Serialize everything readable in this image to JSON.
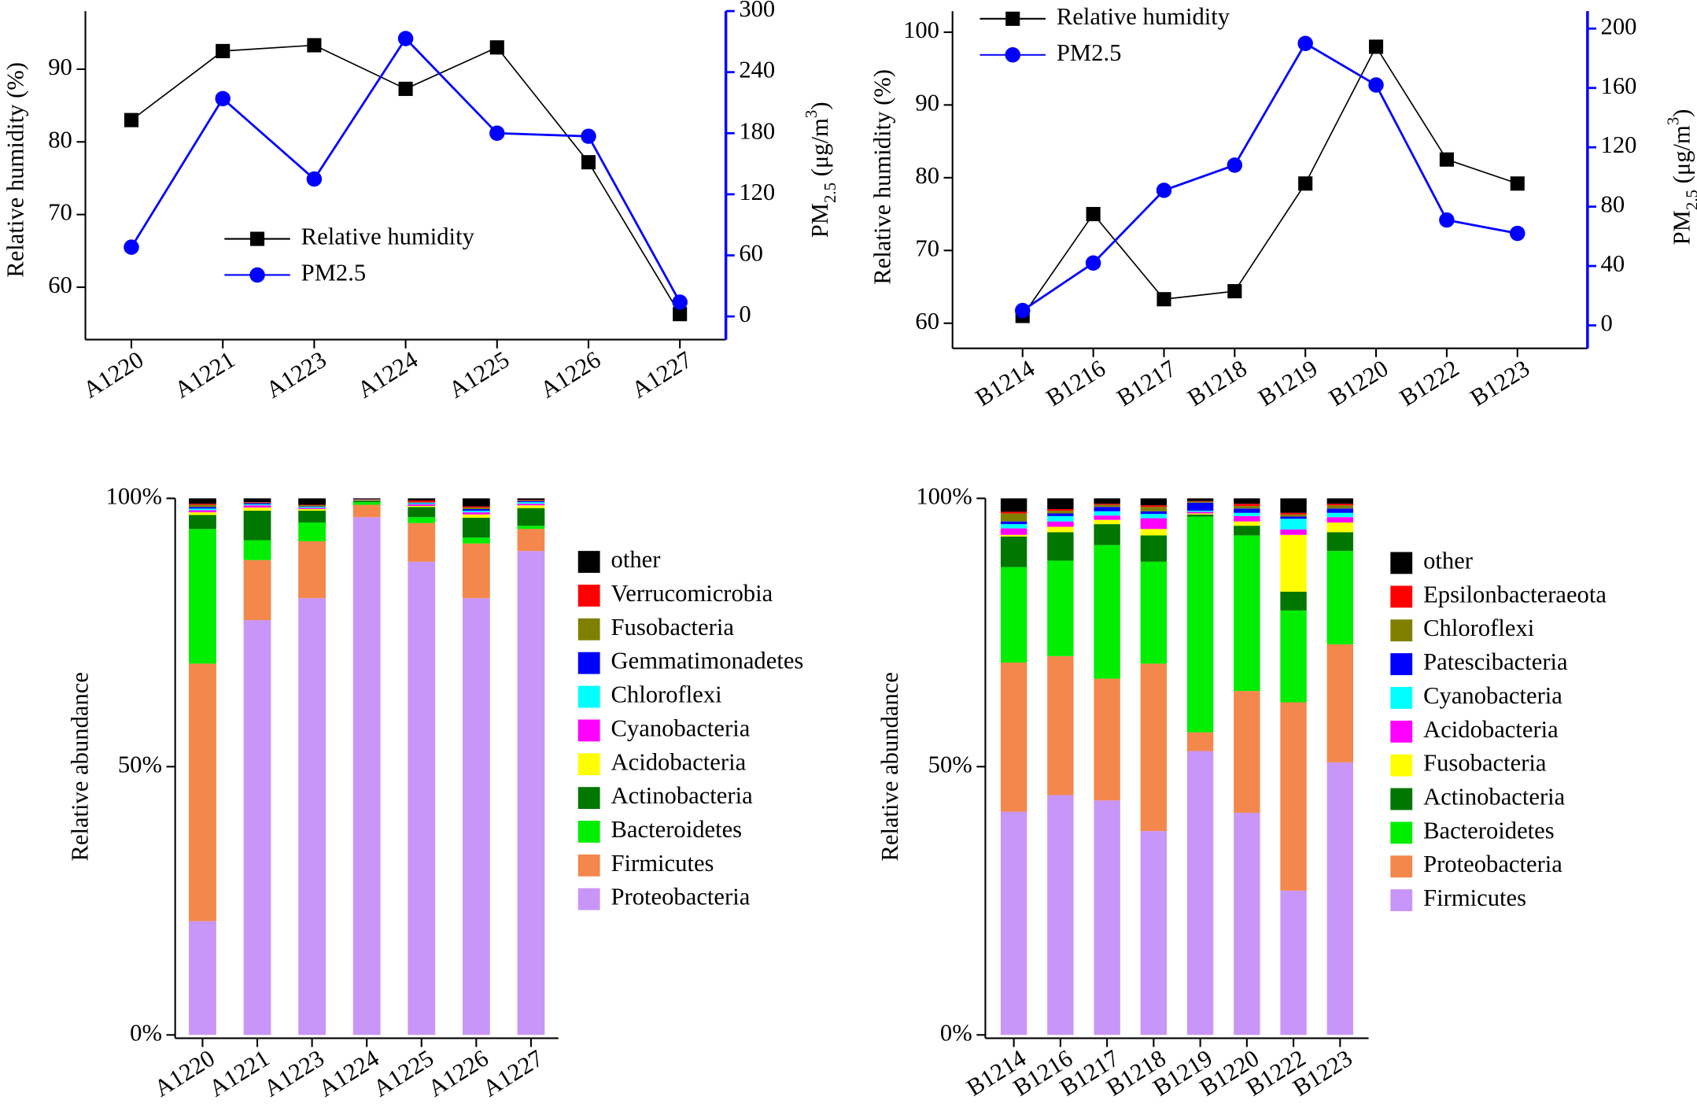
{
  "chart_data": [
    {
      "type": "line",
      "categories": [
        "A1220",
        "A1221",
        "A1223",
        "A1224",
        "A1225",
        "A1226",
        "A1227"
      ],
      "ylabel": "Relative humidity (%)",
      "y2label": [
        "PM",
        "2.5",
        " (μg/m",
        "3",
        ")"
      ],
      "ylim": [
        54.3,
        98
      ],
      "yticks": [
        60,
        70,
        80,
        90
      ],
      "y2lim": [
        -12,
        300
      ],
      "y2ticks": [
        0,
        60,
        120,
        180,
        240,
        300
      ],
      "series": [
        {
          "name": "Relative humidity",
          "color": "#000000",
          "marker": "square",
          "values": [
            83,
            92.5,
            93.3,
            87.3,
            93,
            77.2,
            56.3
          ]
        },
        {
          "name": "PM2.5",
          "color": "#0000ff",
          "marker": "circle",
          "axis": "y2",
          "values": [
            68,
            214,
            135,
            273,
            180,
            177,
            14
          ]
        }
      ]
    },
    {
      "type": "line",
      "categories": [
        "B1214",
        "B1216",
        "B1217",
        "B1218",
        "B1219",
        "B1220",
        "B1222",
        "B1223"
      ],
      "ylabel": "Relative humidity (%)",
      "y2label": [
        "PM",
        "2.5",
        " (μg/m",
        "3",
        ")"
      ],
      "ylim": [
        57.3,
        102.9
      ],
      "yticks": [
        60,
        70,
        80,
        90,
        100
      ],
      "y2lim": [
        -11.8,
        211.8
      ],
      "y2ticks": [
        0,
        40,
        80,
        120,
        160,
        200
      ],
      "series": [
        {
          "name": "Relative humidity",
          "color": "#000000",
          "marker": "square",
          "values": [
            61,
            75,
            63.3,
            64.4,
            79.2,
            98,
            82.5,
            79.2
          ]
        },
        {
          "name": "PM2.5",
          "color": "#0000ff",
          "marker": "circle",
          "axis": "y2",
          "values": [
            10,
            42,
            91,
            108,
            190,
            162,
            71,
            62
          ]
        }
      ]
    },
    {
      "type": "stacked_bar",
      "categories": [
        "A1220",
        "A1221",
        "A1223",
        "A1224",
        "A1225",
        "A1226",
        "A1227"
      ],
      "ylabel": "Relative abundance",
      "ylim": [
        0,
        100
      ],
      "yticks": [
        {
          "value": 0,
          "label": "0%"
        },
        {
          "value": 50,
          "label": "50%"
        },
        {
          "value": 100,
          "label": "100%"
        }
      ],
      "series": [
        {
          "name": "Proteobacteria",
          "color": "#c896f8",
          "values": [
            21.2,
            77.3,
            81.4,
            96.5,
            88.2,
            81.4,
            90.2
          ]
        },
        {
          "name": "Firmicutes",
          "color": "#f4874b",
          "values": [
            48,
            11.2,
            10.6,
            2.3,
            7.2,
            10.2,
            4.1
          ]
        },
        {
          "name": "Bacteroidetes",
          "color": "#00ee00",
          "values": [
            25.1,
            3.7,
            3.5,
            0.5,
            1.1,
            1.1,
            0.6
          ]
        },
        {
          "name": "Actinobacteria",
          "color": "#007700",
          "values": [
            2.6,
            5.5,
            2.2,
            0.3,
            1.9,
            3.7,
            3.3
          ]
        },
        {
          "name": "Acidobacteria",
          "color": "#ffff00",
          "values": [
            0.5,
            0.6,
            0.3,
            0.1,
            0.2,
            0.6,
            0.5
          ]
        },
        {
          "name": "Cyanobacteria",
          "color": "#ff00ff",
          "values": [
            0.4,
            0.4,
            0.2,
            0.1,
            0.3,
            0.4,
            0.3
          ]
        },
        {
          "name": "Chloroflexi",
          "color": "#00ffff",
          "values": [
            0.3,
            0.2,
            0.2,
            0,
            0.2,
            0.3,
            0.3
          ]
        },
        {
          "name": "Gemmatimonadetes",
          "color": "#0000ff",
          "values": [
            0.3,
            0.2,
            0.1,
            0,
            0.1,
            0.3,
            0.2
          ]
        },
        {
          "name": "Fusobacteria",
          "color": "#808000",
          "values": [
            0.4,
            0.1,
            0.2,
            0,
            0.1,
            0.3,
            0.1
          ]
        },
        {
          "name": "Verrucomicrobia",
          "color": "#ff0000",
          "values": [
            0.2,
            0.1,
            0.1,
            0,
            0.3,
            0.2,
            0.1
          ]
        },
        {
          "name": "other",
          "color": "#000000",
          "values": [
            1.0,
            0.7,
            1.2,
            0.2,
            0.4,
            1.5,
            0.3
          ]
        }
      ]
    },
    {
      "type": "stacked_bar",
      "categories": [
        "B1214",
        "B1216",
        "B1217",
        "B1218",
        "B1219",
        "B1220",
        "B1222",
        "B1223"
      ],
      "ylabel": "Relative abundance",
      "ylim": [
        0,
        100
      ],
      "yticks": [
        {
          "value": 0,
          "label": "0%"
        },
        {
          "value": 50,
          "label": "50%"
        },
        {
          "value": 100,
          "label": "100%"
        }
      ],
      "series": [
        {
          "name": "Firmicutes",
          "color": "#c896f8",
          "values": [
            41.6,
            44.7,
            43.7,
            38,
            52.9,
            41.4,
            26.9,
            50.8
          ]
        },
        {
          "name": "Proteobacteria",
          "color": "#f4874b",
          "values": [
            27.8,
            25.9,
            22.7,
            31.2,
            3.5,
            22.7,
            35.1,
            22
          ]
        },
        {
          "name": "Bacteroidetes",
          "color": "#00ee00",
          "values": [
            17.8,
            17.8,
            24.9,
            19,
            40.2,
            29,
            17.1,
            17.4
          ]
        },
        {
          "name": "Actinobacteria",
          "color": "#007700",
          "values": [
            5.7,
            5.3,
            3.9,
            4.9,
            0.4,
            1.8,
            3.5,
            3.5
          ]
        },
        {
          "name": "Fusobacteria",
          "color": "#ffff00",
          "values": [
            0.3,
            1.0,
            0.8,
            1.2,
            0.2,
            0.8,
            10.6,
            1.8
          ]
        },
        {
          "name": "Acidobacteria",
          "color": "#ff00ff",
          "values": [
            1.2,
            1.0,
            0.8,
            2.0,
            0.3,
            1.0,
            1.0,
            1.0
          ]
        },
        {
          "name": "Cyanobacteria",
          "color": "#00ffff",
          "values": [
            0.8,
            1.0,
            0.8,
            0.8,
            0.2,
            0.6,
            2.0,
            0.8
          ]
        },
        {
          "name": "Patescibacteria",
          "color": "#0000ff",
          "values": [
            0.5,
            0.5,
            0.8,
            0.5,
            1.5,
            0.8,
            0.4,
            0.8
          ]
        },
        {
          "name": "Chloroflexi",
          "color": "#808000",
          "values": [
            1.5,
            0.5,
            0.4,
            0.8,
            0.2,
            0.5,
            0.4,
            0.6
          ]
        },
        {
          "name": "Epsilonbacteraeota",
          "color": "#ff0000",
          "values": [
            0.3,
            0.3,
            0.2,
            0.3,
            0.1,
            0.4,
            0.3,
            0.3
          ]
        },
        {
          "name": "other",
          "color": "#000000",
          "values": [
            2.5,
            2.0,
            1.0,
            1.3,
            0.5,
            1.0,
            2.7,
            1.0
          ]
        }
      ]
    }
  ]
}
